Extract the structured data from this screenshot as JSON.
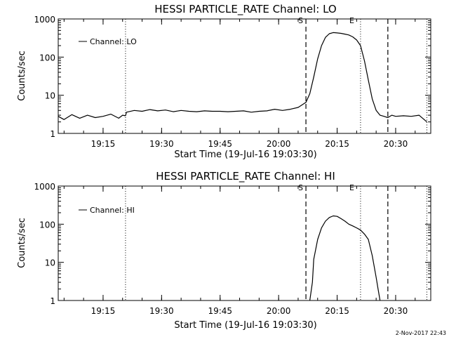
{
  "footer": {
    "timestamp": "2-Nov-2017 22:43"
  },
  "chart_data": [
    {
      "type": "line",
      "title": "HESSI PARTICLE_RATE Channel: LO",
      "xlabel": "Start Time (19-Jul-16 19:03:30)",
      "ylabel": "Counts/sec",
      "yscale": "log",
      "xlim": [
        "19:03:30",
        "20:39:00"
      ],
      "ylim": [
        1,
        1000
      ],
      "x_ticks": [
        "19:15",
        "19:30",
        "19:45",
        "20:00",
        "20:15",
        "20:30"
      ],
      "y_ticks": [
        "1",
        "10",
        "100",
        "1000"
      ],
      "legend": "top-left",
      "series": [
        {
          "name": "Channel: LO",
          "x": [
            "19:03:30",
            "19:05",
            "19:07",
            "19:09",
            "19:11",
            "19:13",
            "19:15",
            "19:17",
            "19:19",
            "19:20",
            "19:20:45",
            "19:21",
            "19:23",
            "19:25",
            "19:27",
            "19:29",
            "19:31",
            "19:33",
            "19:35",
            "19:37",
            "19:39",
            "19:41",
            "19:43",
            "19:45",
            "19:47",
            "19:49",
            "19:51",
            "19:53",
            "19:55",
            "19:57",
            "19:59",
            "20:01",
            "20:03",
            "20:05",
            "20:07",
            "20:08",
            "20:09",
            "20:10",
            "20:11",
            "20:12",
            "20:13",
            "20:14",
            "20:15",
            "20:16",
            "20:17",
            "20:18",
            "20:19",
            "20:20",
            "20:21",
            "20:22",
            "20:23",
            "20:24",
            "20:25",
            "20:26",
            "20:27",
            "20:28",
            "20:29",
            "20:30",
            "20:32",
            "20:34",
            "20:36",
            "20:38"
          ],
          "y": [
            2.8,
            2.3,
            3.1,
            2.5,
            3.0,
            2.6,
            2.8,
            3.2,
            2.5,
            3.0,
            2.9,
            3.6,
            4.0,
            3.8,
            4.2,
            3.9,
            4.1,
            3.7,
            4.0,
            3.8,
            3.7,
            3.9,
            3.8,
            3.8,
            3.7,
            3.8,
            3.9,
            3.6,
            3.8,
            3.9,
            4.3,
            4.0,
            4.3,
            4.8,
            6.5,
            11,
            30,
            90,
            200,
            330,
            410,
            440,
            430,
            420,
            400,
            380,
            340,
            280,
            200,
            80,
            25,
            8,
            4,
            3,
            2.8,
            2.6,
            3.0,
            2.8,
            2.9,
            2.8,
            3.0,
            2.0
          ]
        }
      ],
      "events": {
        "start_label": "S",
        "end_label": "E",
        "dashed": [
          "20:07",
          "20:28"
        ],
        "dotted": [
          "19:20:45",
          "20:21",
          "20:38"
        ]
      }
    },
    {
      "type": "line",
      "title": "HESSI PARTICLE_RATE Channel: HI",
      "xlabel": "Start Time (19-Jul-16 19:03:30)",
      "ylabel": "Counts/sec",
      "yscale": "log",
      "xlim": [
        "19:03:30",
        "20:39:00"
      ],
      "ylim": [
        1,
        1000
      ],
      "x_ticks": [
        "19:15",
        "19:30",
        "19:45",
        "20:00",
        "20:15",
        "20:30"
      ],
      "y_ticks": [
        "1",
        "10",
        "100",
        "1000"
      ],
      "legend": "top-left",
      "series": [
        {
          "name": "Channel: HI",
          "x": [
            "20:08",
            "20:08:40",
            "20:09",
            "20:10",
            "20:11",
            "20:12",
            "20:13",
            "20:14",
            "20:15",
            "20:16",
            "20:17",
            "20:18",
            "20:19",
            "20:20",
            "20:21",
            "20:22",
            "20:23",
            "20:24",
            "20:25",
            "20:25:30",
            "20:26"
          ],
          "y": [
            1,
            3,
            12,
            40,
            80,
            120,
            150,
            165,
            160,
            140,
            120,
            100,
            90,
            80,
            70,
            55,
            40,
            15,
            4,
            2,
            1
          ]
        }
      ],
      "events": {
        "start_label": "S",
        "end_label": "E",
        "dashed": [
          "20:07",
          "20:28"
        ],
        "dotted": [
          "19:20:45",
          "20:21",
          "20:38"
        ]
      }
    }
  ]
}
